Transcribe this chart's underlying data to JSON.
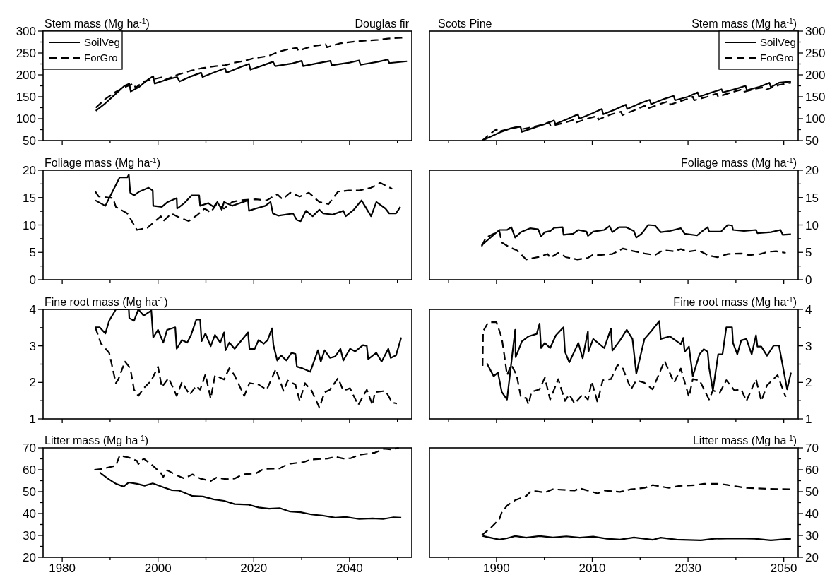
{
  "chart_data": [
    {
      "type": "line",
      "title": "Douglas fir",
      "ylabel": "Stem mass (Mg ha$^{-1}$)",
      "legend": "top left",
      "tick_labels": "y",
      "xlim": [
        1976,
        2053
      ],
      "xticks": [
        1980,
        {
          "value": 1990,
          "label": null
        },
        2000,
        {
          "value": 2010,
          "label": null
        },
        2020,
        {
          "value": 2030,
          "label": null
        },
        2040,
        {
          "value": 2050,
          "label": null
        }
      ],
      "ylim": [
        50,
        300
      ],
      "yticks": [
        50,
        {
          "value": 75,
          "label": null
        },
        100,
        {
          "value": 125,
          "label": null
        },
        150,
        {
          "value": 175,
          "label": null
        },
        200,
        {
          "value": 225,
          "label": null
        },
        250,
        {
          "value": 275,
          "label": null
        },
        300
      ],
      "series": [
        {
          "name": "SoilVeg",
          "color": "#000000",
          "line_style": "solid",
          "x": [
            1987,
            1989,
            1991,
            1993,
            1994,
            1994.3,
            1996,
            1998,
            1999,
            1999.3,
            2002,
            2004,
            2004.5,
            2007,
            2009,
            2009.3,
            2012,
            2014,
            2014.3,
            2017,
            2019,
            2019.3,
            2022,
            2024,
            2024.5,
            2028,
            2030,
            2030.3,
            2034,
            2036,
            2036.3,
            2040,
            2042,
            2042.3,
            2046,
            2048,
            2048.3,
            2052
          ],
          "values": [
            118,
            135,
            155,
            175,
            180,
            162,
            172,
            190,
            197,
            180,
            190,
            195,
            185,
            197,
            205,
            195,
            207,
            215,
            205,
            217,
            225,
            212,
            222,
            230,
            220,
            226,
            232,
            220,
            228,
            232,
            222,
            228,
            233,
            223,
            230,
            235,
            227,
            231
          ]
        },
        {
          "name": "ForGro",
          "color": "#000000",
          "line_style": "dashed",
          "x": [
            1987,
            1989,
            1991,
            1993,
            1995,
            1995.3,
            1997,
            1999,
            2001,
            2001.3,
            2004,
            2007,
            2009,
            2012,
            2014,
            2016,
            2018,
            2020,
            2023,
            2025,
            2027,
            2029,
            2029.3,
            2032,
            2035,
            2035.3,
            2038,
            2041,
            2043,
            2046,
            2048,
            2051
          ],
          "values": [
            125,
            145,
            160,
            172,
            180,
            170,
            185,
            190,
            195,
            188,
            200,
            210,
            215,
            220,
            222,
            228,
            232,
            238,
            243,
            252,
            258,
            262,
            255,
            265,
            270,
            263,
            272,
            276,
            278,
            280,
            283,
            285
          ]
        }
      ]
    },
    {
      "type": "line",
      "title": "Scots Pine",
      "y2label": "Stem mass (Mg ha$^{-1}$)",
      "legend": "top right",
      "tick_labels": "y",
      "xlim": [
        1976,
        2053
      ],
      "xticks": [
        {
          "value": 1980,
          "label": null
        },
        1990,
        {
          "value": 2000,
          "label": null
        },
        2010,
        {
          "value": 2020,
          "label": null
        },
        2030,
        {
          "value": 2040,
          "label": null
        },
        2050
      ],
      "y2lim": [
        50,
        300
      ],
      "y2ticks": [
        50,
        {
          "value": 75,
          "label": null
        },
        100,
        {
          "value": 125,
          "label": null
        },
        150,
        {
          "value": 175,
          "label": null
        },
        200,
        {
          "value": 225,
          "label": null
        },
        250,
        {
          "value": 275,
          "label": null
        },
        300
      ],
      "series": [
        {
          "name": "SoilVeg",
          "color": "#000000",
          "line_style": "solid",
          "axis": "y2",
          "x": [
            1987,
            1989,
            1991,
            1993,
            1995,
            1995.3,
            1998,
            2000,
            2002,
            2002.3,
            2005,
            2007,
            2007.3,
            2010,
            2012,
            2012.3,
            2015,
            2017,
            2017.3,
            2020,
            2022,
            2022.3,
            2025,
            2027,
            2027.3,
            2030,
            2032,
            2032.3,
            2035,
            2037,
            2037.3,
            2040,
            2042,
            2042.3,
            2045,
            2047,
            2047.3,
            2049,
            2051.5
          ],
          "values": [
            50,
            60,
            70,
            78,
            82,
            70,
            80,
            87,
            96,
            88,
            100,
            110,
            100,
            112,
            122,
            110,
            122,
            132,
            122,
            135,
            143,
            133,
            145,
            152,
            142,
            150,
            160,
            150,
            160,
            167,
            160,
            168,
            175,
            165,
            173,
            182,
            172,
            182,
            185
          ]
        },
        {
          "name": "ForGro",
          "color": "#000000",
          "line_style": "dashed",
          "axis": "y2",
          "x": [
            1987,
            1989,
            1990,
            1990.3,
            1993,
            1995,
            1995.3,
            1998,
            2000,
            2001,
            2001.3,
            2004,
            2006,
            2006.3,
            2009,
            2011,
            2011.3,
            2014,
            2016,
            2016.3,
            2019,
            2021,
            2021.3,
            2024,
            2026,
            2026.3,
            2029,
            2031,
            2031.3,
            2034,
            2036,
            2036.3,
            2039,
            2041,
            2041.3,
            2044,
            2046,
            2046.3,
            2049,
            2051.5
          ],
          "values": [
            50,
            68,
            76,
            70,
            78,
            82,
            76,
            82,
            88,
            92,
            83,
            90,
            97,
            90,
            100,
            106,
            98,
            110,
            116,
            108,
            120,
            130,
            122,
            133,
            140,
            132,
            142,
            150,
            142,
            150,
            157,
            150,
            160,
            166,
            160,
            168,
            172,
            166,
            177,
            182
          ]
        }
      ]
    },
    {
      "type": "line",
      "ylabel": "Foliage mass (Mg ha$^{-1}$)",
      "tick_labels": "y",
      "xlim": [
        1976,
        2053
      ],
      "xticks": [
        1980,
        {
          "value": 1990,
          "label": null
        },
        2000,
        {
          "value": 2010,
          "label": null
        },
        2020,
        {
          "value": 2030,
          "label": null
        },
        2040,
        {
          "value": 2050,
          "label": null
        }
      ],
      "ylim": [
        0,
        20
      ],
      "yticks": [
        0,
        {
          "value": 2.5,
          "label": null
        },
        5,
        {
          "value": 7.5,
          "label": null
        },
        10,
        {
          "value": 12.5,
          "label": null
        },
        15,
        {
          "value": 17.5,
          "label": null
        },
        20
      ],
      "series": [
        {
          "color": "#000000",
          "line_style": "solid",
          "x": [
            1986.9,
            1989,
            1990.6,
            1992,
            1993.6,
            1993.9,
            1994.2,
            1995,
            1996.1,
            1998,
            1998.9,
            1999,
            2000.8,
            2002,
            2003.9,
            2004,
            2005.5,
            2007,
            2008.6,
            2008.8,
            2010.5,
            2011.6,
            2012.4,
            2013.3,
            2013.8,
            2015.5,
            2017.1,
            2018.8,
            2019,
            2020.4,
            2022.4,
            2023.5,
            2024,
            2025.1,
            2028.2,
            2029,
            2029.8,
            2030.9,
            2032.3,
            2033.7,
            2034.5,
            2036.5,
            2038.7,
            2039.2,
            2040.9,
            2042.5,
            2044.5,
            2045.6,
            2047.5,
            2048.3,
            2049.7,
            2050.6
          ],
          "values": [
            14.5,
            13.5,
            16.3,
            18.7,
            18.7,
            19.2,
            15.9,
            15.4,
            16.1,
            16.8,
            16.3,
            13.5,
            13.3,
            14.2,
            14.9,
            13,
            14,
            15.4,
            15.4,
            13.5,
            14,
            13.3,
            14.2,
            12.8,
            14.2,
            13.5,
            14,
            14.5,
            12.6,
            13,
            13.5,
            14.2,
            12.1,
            11.7,
            12.1,
            10.9,
            10.7,
            12.6,
            11.6,
            12.8,
            12.1,
            11.9,
            12.6,
            11.6,
            12.8,
            14.5,
            11.6,
            14.2,
            13,
            12.1,
            12.1,
            13.3
          ]
        },
        {
          "color": "#000000",
          "line_style": "dashed",
          "x": [
            1986.9,
            1987.6,
            1990.6,
            1991.2,
            1993.6,
            1995.6,
            1997.8,
            2000.6,
            2001.1,
            2002.8,
            2004.4,
            2006.4,
            2008.3,
            2009.7,
            2011,
            2012.2,
            2013.8,
            2015.5,
            2017.1,
            2020.4,
            2022.7,
            2024.9,
            2026,
            2027.6,
            2029.6,
            2031.5,
            2033.7,
            2035.6,
            2037.6,
            2039.8,
            2042,
            2044.5,
            2046.4,
            2048.9
          ],
          "values": [
            16.1,
            15.2,
            14.9,
            13.3,
            12.1,
            9.1,
            9.5,
            11.6,
            10.7,
            12.1,
            11.4,
            10.7,
            11.9,
            13,
            12.3,
            13.8,
            13,
            14.2,
            14.5,
            14.7,
            14.5,
            15.6,
            14.7,
            15.9,
            15.2,
            15.9,
            14.2,
            13.8,
            16.1,
            16.3,
            16.3,
            16.8,
            17.7,
            16.6
          ]
        }
      ]
    },
    {
      "type": "line",
      "y2label": "Foliage mass (Mg ha$^{-1}$)",
      "tick_labels": "y",
      "xlim": [
        1976,
        2053
      ],
      "xticks": [
        {
          "value": 1980,
          "label": null
        },
        1990,
        {
          "value": 2000,
          "label": null
        },
        2010,
        {
          "value": 2020,
          "label": null
        },
        2030,
        {
          "value": 2040,
          "label": null
        },
        2050
      ],
      "y2lim": [
        0,
        20
      ],
      "y2ticks": [
        0,
        {
          "value": 2.5,
          "label": null
        },
        5,
        {
          "value": 7.5,
          "label": null
        },
        10,
        {
          "value": 12.5,
          "label": null
        },
        15,
        {
          "value": 17.5,
          "label": null
        },
        20
      ],
      "series": [
        {
          "color": "#000000",
          "line_style": "solid",
          "axis": "y2",
          "x": [
            1986.9,
            1990.6,
            1992.2,
            1993.1,
            1993.9,
            1995.1,
            1997,
            1998.7,
            1999.3,
            2000.1,
            2001.2,
            2002.1,
            2003.8,
            2004,
            2006,
            2007.1,
            2008.8,
            2009.1,
            2010.2,
            2012.5,
            2013.6,
            2014.2,
            2015.6,
            2017,
            2018.7,
            2019.2,
            2020.3,
            2021.7,
            2023.1,
            2024.3,
            2026.2,
            2028.5,
            2029.3,
            2031.9,
            2033,
            2034.1,
            2034.4,
            2036.9,
            2038.3,
            2039.2,
            2039.4,
            2041.7,
            2044.2,
            2044.5,
            2047.3,
            2049.3,
            2049.8,
            2051.5
          ],
          "values": [
            6.3,
            9.1,
            9.1,
            9.6,
            7.7,
            8.7,
            9.4,
            9.2,
            7.9,
            8.7,
            8.9,
            9.5,
            9.6,
            8.2,
            8.4,
            9.1,
            8.8,
            8,
            8.8,
            9.1,
            9.8,
            8.7,
            9.6,
            9.6,
            8.9,
            7.7,
            8.4,
            10,
            9.9,
            8.7,
            8.9,
            9.4,
            8.4,
            8.1,
            8.9,
            9.6,
            8.8,
            8.8,
            10,
            9.9,
            9.1,
            8.9,
            9.1,
            8.5,
            8.7,
            9.1,
            8.2,
            8.3
          ]
        },
        {
          "color": "#000000",
          "line_style": "dashed",
          "axis": "y2",
          "x": [
            1986.9,
            1987.8,
            1990.6,
            1991.1,
            1992.8,
            1994.2,
            1996.2,
            1999,
            2000.7,
            2001.2,
            2002.9,
            2004.6,
            2006.9,
            2009.1,
            2010.2,
            2011.6,
            2014.2,
            2016.4,
            2018.7,
            2020.9,
            2023.1,
            2024.8,
            2027.1,
            2028.5,
            2029.9,
            2032.1,
            2034.1,
            2036.1,
            2038.3,
            2041.1,
            2042.8,
            2045.1,
            2046.7,
            2048.4,
            2050.4
          ],
          "values": [
            6.1,
            7.7,
            8.9,
            6.8,
            5.9,
            5.4,
            3.7,
            4.2,
            4.7,
            4,
            4.9,
            4.1,
            3.7,
            4,
            4.6,
            4.5,
            4.7,
            5.7,
            5.2,
            4.8,
            4.5,
            5.4,
            5.2,
            5.6,
            5.1,
            5.4,
            4.5,
            4.1,
            4.7,
            4.8,
            4.5,
            4.7,
            5.1,
            5.2,
            4.9
          ]
        }
      ]
    },
    {
      "type": "line",
      "ylabel": "Fine root mass (Mg ha$^{-1}$)",
      "tick_labels": "y",
      "xlim": [
        1976,
        2053
      ],
      "xticks": [
        1980,
        {
          "value": 1990,
          "label": null
        },
        2000,
        {
          "value": 2010,
          "label": null
        },
        2020,
        {
          "value": 2030,
          "label": null
        },
        2040,
        {
          "value": 2050,
          "label": null
        }
      ],
      "ylim": [
        1,
        4
      ],
      "yticks": [
        1,
        {
          "value": 1.5,
          "label": null
        },
        2,
        {
          "value": 2.5,
          "label": null
        },
        3,
        {
          "value": 3.5,
          "label": null
        },
        4
      ],
      "series": [
        {
          "color": "#000000",
          "line_style": "solid",
          "x": [
            1986.9,
            1987.8,
            1989,
            1989.8,
            1991.2,
            1993.9,
            1994,
            1995,
            1995.9,
            1997,
            1998.6,
            1999,
            2000,
            2001.1,
            2001.9,
            2003.6,
            2003.9,
            2005,
            2006.1,
            2006.9,
            2008,
            2008.8,
            2009.1,
            2009.9,
            2011,
            2011.9,
            2013,
            2013.8,
            2014.1,
            2014.9,
            2016,
            2018.8,
            2019.1,
            2020.2,
            2021,
            2022.1,
            2022.9,
            2023.8,
            2024.1,
            2024.9,
            2025.7,
            2026.8,
            2027.9,
            2028.7,
            2029,
            2030.1,
            2031.8,
            2033.4,
            2034,
            2034.8,
            2035.9,
            2037,
            2038.1,
            2038.7,
            2040.1,
            2041.2,
            2042.8,
            2043.6,
            2043.9,
            2045.6,
            2046.7,
            2048.1,
            2048.6,
            2049.7,
            2050.8
          ],
          "values": [
            3.51,
            3.51,
            3.34,
            3.69,
            4,
            4,
            3.76,
            3.69,
            4,
            3.83,
            3.97,
            3.23,
            3.44,
            3.09,
            3.44,
            3.51,
            2.92,
            3.16,
            3.09,
            3.3,
            3.72,
            3.72,
            3.13,
            3.34,
            2.99,
            3.3,
            3.09,
            3.37,
            2.88,
            3.09,
            2.92,
            3.37,
            2.92,
            2.92,
            3.16,
            3.06,
            3.16,
            3.48,
            3.02,
            2.6,
            2.74,
            2.6,
            2.81,
            2.78,
            2.43,
            2.39,
            2.29,
            2.88,
            2.57,
            2.88,
            2.67,
            2.71,
            2.92,
            2.6,
            2.92,
            2.85,
            3.02,
            3.0,
            2.64,
            2.81,
            2.57,
            2.92,
            2.67,
            2.74,
            3.23
          ]
        },
        {
          "color": "#000000",
          "line_style": "dashed",
          "x": [
            1986.9,
            1988.1,
            1989.8,
            1991.2,
            1991.7,
            1993.1,
            1994.2,
            1995,
            1995.9,
            1997,
            1998.6,
            2000,
            2000.8,
            2002.2,
            2003.9,
            2005,
            2006.6,
            2008,
            2008.8,
            2009.9,
            2011,
            2011.9,
            2013.8,
            2014.9,
            2016,
            2018,
            2019.1,
            2021,
            2022.7,
            2024.6,
            2026.2,
            2027.1,
            2028.7,
            2029.6,
            2030.7,
            2032.1,
            2033.7,
            2034.8,
            2035.9,
            2037.6,
            2038.7,
            2040.1,
            2041.8,
            2043.6,
            2044.8,
            2045.3,
            2047.5,
            2048.9,
            2049.9
          ],
          "values": [
            3.51,
            3.06,
            2.81,
            1.98,
            2.08,
            2.57,
            2.39,
            1.8,
            1.63,
            1.84,
            2.05,
            2.43,
            1.87,
            2.12,
            1.63,
            2.01,
            1.66,
            1.91,
            1.8,
            2.22,
            1.56,
            2.19,
            2.08,
            2.39,
            2.19,
            1.63,
            1.98,
            1.94,
            1.8,
            2.36,
            1.77,
            2.05,
            1.94,
            1.49,
            1.98,
            1.77,
            1.31,
            1.73,
            1.8,
            2.12,
            1.77,
            1.84,
            1.38,
            1.8,
            1.38,
            1.73,
            1.77,
            1.45,
            1.42
          ]
        }
      ]
    },
    {
      "type": "line",
      "y2label": "Fine root mass (Mg ha$^{-1}$)",
      "tick_labels": "y",
      "xlim": [
        1976,
        2053
      ],
      "xticks": [
        {
          "value": 1980,
          "label": null
        },
        1990,
        {
          "value": 2000,
          "label": null
        },
        2010,
        {
          "value": 2020,
          "label": null
        },
        2030,
        {
          "value": 2040,
          "label": null
        },
        2050
      ],
      "y2lim": [
        1,
        4
      ],
      "y2ticks": [
        1,
        {
          "value": 1.5,
          "label": null
        },
        2,
        {
          "value": 2.5,
          "label": null
        },
        3,
        {
          "value": 3.5,
          "label": null
        },
        4
      ],
      "series": [
        {
          "color": "#000000",
          "line_style": "solid",
          "axis": "y2",
          "x": [
            1988,
            1989.4,
            1990.3,
            1991.1,
            1992.2,
            1993.9,
            1994,
            1995.3,
            1996.7,
            1998.4,
            1999,
            1999.3,
            2000.1,
            2001.2,
            2002.4,
            2004,
            2004.3,
            2005.2,
            2007.1,
            2008,
            2009.1,
            2009.2,
            2010.2,
            2012.5,
            2013.9,
            2014.2,
            2015.8,
            2017.2,
            2018.4,
            2019.2,
            2020.9,
            2022.3,
            2024,
            2024.3,
            2026.2,
            2028.5,
            2029,
            2029.3,
            2030.2,
            2031,
            2032.4,
            2033.3,
            2034.1,
            2034.4,
            2035.2,
            2036.3,
            2037.2,
            2038,
            2039.2,
            2039.4,
            2040.3,
            2041.1,
            2042.2,
            2043.3,
            2044.2,
            2044.5,
            2045.3,
            2046.5,
            2047.9,
            2049,
            2050.7,
            2051.5
          ],
          "values": [
            2.52,
            2.17,
            2.27,
            1.74,
            1.53,
            3.44,
            2.69,
            3.12,
            3.26,
            3.33,
            3.61,
            2.94,
            3.08,
            2.94,
            3.29,
            3.51,
            2.84,
            2.55,
            3.08,
            2.66,
            3.4,
            2.84,
            3.19,
            2.94,
            3.47,
            2.87,
            3.15,
            3.44,
            3.19,
            2.24,
            3.19,
            3.4,
            3.68,
            3.19,
            3.26,
            3.05,
            3.22,
            2.84,
            2.98,
            2.17,
            2.77,
            2.91,
            2.84,
            2.41,
            1.78,
            2.77,
            2.77,
            3.51,
            3.51,
            3.08,
            2.77,
            3.15,
            3.19,
            2.77,
            3.29,
            2.98,
            2.98,
            2.73,
            3.01,
            3.01,
            1.81,
            2.27
          ]
        },
        {
          "color": "#000000",
          "line_style": "dashed",
          "axis": "y2",
          "x": [
            1987.1,
            1987.2,
            1988.3,
            1990,
            1991.1,
            1991.7,
            1992.2,
            1993.1,
            1994.2,
            1995.1,
            1996.2,
            1996.7,
            1997.3,
            1999,
            2000.1,
            2001.2,
            2002.9,
            2004.3,
            2005.2,
            2006.3,
            2008,
            2009.1,
            2009.9,
            2011.1,
            2012.2,
            2013.9,
            2015.3,
            2016.4,
            2018.1,
            2019.2,
            2020.9,
            2022.6,
            2025.1,
            2027.1,
            2028.5,
            2030.2,
            2031,
            2032.4,
            2034.4,
            2035.2,
            2036.6,
            2038,
            2039.7,
            2041.1,
            2042.2,
            2044.2,
            2045.3,
            2046.5,
            2048.7,
            2050.4
          ],
          "values": [
            2.45,
            3.4,
            3.65,
            3.65,
            3.22,
            2.69,
            2.2,
            2.48,
            2.2,
            1.6,
            1.57,
            1.39,
            1.74,
            1.81,
            2.13,
            1.53,
            2.09,
            1.49,
            1.67,
            1.42,
            1.67,
            1.53,
            2.02,
            1.46,
            2.06,
            2.09,
            2.48,
            2.38,
            1.81,
            2.06,
            1.99,
            1.81,
            2.59,
            1.99,
            2.38,
            1.6,
            2.09,
            2.06,
            1.53,
            1.78,
            1.71,
            2.06,
            1.78,
            1.81,
            1.49,
            2.09,
            1.49,
            1.92,
            2.2,
            1.6
          ]
        }
      ]
    },
    {
      "type": "line",
      "ylabel": "Litter mass (Mg ha$^{-1}$)",
      "xlim": [
        1976,
        2053
      ],
      "xticks": [
        1980,
        {
          "value": 1990,
          "label": null
        },
        2000,
        {
          "value": 2010,
          "label": null
        },
        2020,
        {
          "value": 2030,
          "label": null
        },
        2040,
        {
          "value": 2050,
          "label": null
        }
      ],
      "ylim": [
        20,
        70
      ],
      "yticks": [
        20,
        {
          "value": 25,
          "label": null
        },
        30,
        {
          "value": 35,
          "label": null
        },
        40,
        {
          "value": 45,
          "label": null
        },
        50,
        {
          "value": 55,
          "label": null
        },
        60,
        {
          "value": 65,
          "label": null
        },
        70
      ],
      "series": [
        {
          "color": "#000000",
          "line_style": "solid",
          "x": [
            1987.8,
            1989.5,
            1991.2,
            1992.8,
            1993.9,
            1995.6,
            1997.2,
            1998.9,
            2001.1,
            2002.8,
            2004.4,
            2007.2,
            2009.4,
            2011.6,
            2013.8,
            2016,
            2018.8,
            2021,
            2023.2,
            2025.4,
            2027.6,
            2029.8,
            2032,
            2034.3,
            2037,
            2039.2,
            2042,
            2044.8,
            2047,
            2049.2,
            2050.8
          ],
          "values": [
            58.8,
            56,
            53.6,
            52.3,
            54.2,
            53.6,
            52.7,
            53.8,
            52,
            50.7,
            50.5,
            48,
            47.8,
            46.5,
            45.8,
            44.3,
            44.1,
            42.8,
            42.2,
            42.5,
            40.9,
            40.6,
            39.6,
            39.1,
            38.1,
            38.4,
            37.5,
            37.8,
            37.5,
            38.3,
            38.1
          ]
        },
        {
          "color": "#000000",
          "line_style": "dashed",
          "x": [
            1986.7,
            1988.4,
            1991.2,
            1992,
            1993.9,
            1995.6,
            1995.9,
            1997,
            1998.9,
            2000.6,
            2001.1,
            2001.9,
            2003.9,
            2005.5,
            2007.2,
            2008.8,
            2011,
            2012.2,
            2014.4,
            2016,
            2017.7,
            2020.4,
            2022.1,
            2025.4,
            2027.1,
            2030.4,
            2032,
            2035.4,
            2037,
            2038.7,
            2040.3,
            2042,
            2045.3,
            2047.2,
            2048.6,
            2050.3
          ],
          "values": [
            60,
            60.4,
            61.9,
            66.5,
            65.6,
            64.1,
            62.6,
            65.1,
            61.9,
            58.5,
            56.7,
            59.8,
            57.5,
            56,
            57.9,
            56,
            54.8,
            56.4,
            55.7,
            56,
            57.9,
            58.3,
            60.4,
            60.6,
            62.6,
            63.5,
            64.7,
            65.1,
            65.9,
            65.1,
            65.3,
            66.8,
            67.8,
            69.6,
            69.3,
            70
          ]
        }
      ]
    },
    {
      "type": "line",
      "y2label": "Litter mass (Mg ha$^{-1}$)",
      "xlim": [
        1976,
        2053
      ],
      "xticks": [
        {
          "value": 1980,
          "label": null
        },
        1990,
        {
          "value": 2000,
          "label": null
        },
        2010,
        {
          "value": 2020,
          "label": null
        },
        2030,
        {
          "value": 2040,
          "label": null
        },
        2050
      ],
      "y2lim": [
        20,
        70
      ],
      "y2ticks": [
        20,
        {
          "value": 25,
          "label": null
        },
        30,
        {
          "value": 35,
          "label": null
        },
        40,
        {
          "value": 45,
          "label": null
        },
        50,
        {
          "value": 55,
          "label": null
        },
        60,
        {
          "value": 65,
          "label": null
        },
        70
      ],
      "series": [
        {
          "color": "#000000",
          "line_style": "solid",
          "axis": "y2",
          "x": [
            1987.1,
            1988,
            1990.6,
            1992.2,
            1993.9,
            1996.2,
            1999,
            2001.8,
            2004.6,
            2007.4,
            2010.2,
            2013,
            2015.8,
            2018.7,
            2022.6,
            2024.3,
            2027.6,
            2032.7,
            2035.5,
            2040,
            2043.9,
            2047.3,
            2051.5
          ],
          "values": [
            29.8,
            29.3,
            28.1,
            28.7,
            29.7,
            29,
            29.7,
            29.1,
            29.6,
            29,
            29.5,
            28.5,
            28.1,
            29.1,
            28,
            29,
            28.1,
            27.8,
            28.5,
            28.7,
            28.5,
            27.8,
            28.5
          ]
        },
        {
          "color": "#000000",
          "line_style": "dashed",
          "axis": "y2",
          "x": [
            1986.9,
            1988.9,
            1990.6,
            1991.1,
            1992.2,
            1993.9,
            1996.2,
            1997.3,
            2000.1,
            2001.8,
            2006.3,
            2007.4,
            2011.1,
            2012.5,
            2015.8,
            2018.1,
            2020.9,
            2022.6,
            2026,
            2028.2,
            2031.6,
            2033.3,
            2036.6,
            2038.3,
            2042.2,
            2046.7,
            2051.5
          ],
          "values": [
            30,
            33.7,
            37.4,
            40.5,
            43.6,
            46.1,
            48,
            50.5,
            49.6,
            51.1,
            50.5,
            51.5,
            49.2,
            50.5,
            49.9,
            51.1,
            51.7,
            53,
            51.7,
            52.6,
            53,
            53.6,
            53.6,
            53,
            51.7,
            51.3,
            51.1
          ]
        }
      ]
    }
  ]
}
